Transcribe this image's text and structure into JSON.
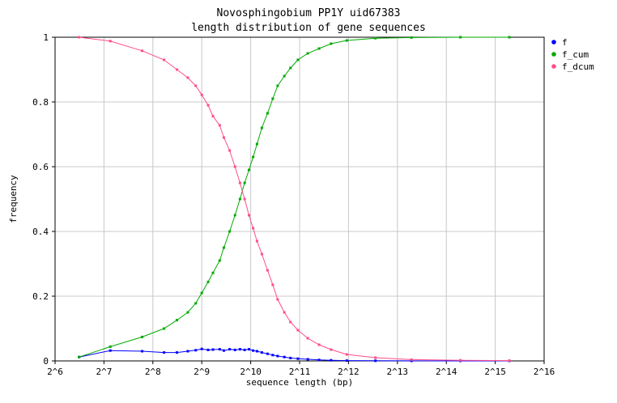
{
  "chart_data": {
    "type": "line",
    "title": "Novosphingobium PP1Y uid67383",
    "subtitle": "length distribution of gene sequences",
    "xlabel": "sequence length (bp)",
    "ylabel": "frequency",
    "xscale": "log2",
    "xlim": [
      64,
      65536
    ],
    "ylim": [
      0,
      1
    ],
    "x_ticks": [
      "2^6",
      "2^7",
      "2^8",
      "2^9",
      "2^10",
      "2^11",
      "2^12",
      "2^13",
      "2^14",
      "2^15",
      "2^16"
    ],
    "y_ticks": [
      "0",
      "0.2",
      "0.4",
      "0.6",
      "0.8",
      "1"
    ],
    "grid": true,
    "legend_position": "right",
    "series": [
      {
        "name": "f",
        "color": "#0000ff",
        "points": [
          [
            90,
            0.012
          ],
          [
            140,
            0.032
          ],
          [
            220,
            0.03
          ],
          [
            300,
            0.026
          ],
          [
            360,
            0.026
          ],
          [
            420,
            0.03
          ],
          [
            470,
            0.033
          ],
          [
            512,
            0.037
          ],
          [
            560,
            0.034
          ],
          [
            600,
            0.035
          ],
          [
            660,
            0.036
          ],
          [
            700,
            0.032
          ],
          [
            760,
            0.036
          ],
          [
            820,
            0.034
          ],
          [
            880,
            0.036
          ],
          [
            940,
            0.034
          ],
          [
            1000,
            0.036
          ],
          [
            1060,
            0.032
          ],
          [
            1120,
            0.03
          ],
          [
            1200,
            0.026
          ],
          [
            1300,
            0.022
          ],
          [
            1400,
            0.018
          ],
          [
            1500,
            0.015
          ],
          [
            1650,
            0.012
          ],
          [
            1800,
            0.009
          ],
          [
            2000,
            0.007
          ],
          [
            2300,
            0.005
          ],
          [
            2700,
            0.003
          ],
          [
            3200,
            0.002
          ],
          [
            4000,
            0.001
          ],
          [
            6000,
            0.0005
          ],
          [
            10000,
            0.0002
          ],
          [
            20000,
            0.0001
          ],
          [
            40000,
            0
          ]
        ]
      },
      {
        "name": "f_cum",
        "color": "#00aa00",
        "points": [
          [
            90,
            0.012
          ],
          [
            140,
            0.044
          ],
          [
            220,
            0.074
          ],
          [
            300,
            0.1
          ],
          [
            360,
            0.126
          ],
          [
            420,
            0.15
          ],
          [
            470,
            0.178
          ],
          [
            512,
            0.21
          ],
          [
            560,
            0.244
          ],
          [
            600,
            0.272
          ],
          [
            660,
            0.31
          ],
          [
            700,
            0.35
          ],
          [
            760,
            0.4
          ],
          [
            820,
            0.45
          ],
          [
            880,
            0.5
          ],
          [
            940,
            0.55
          ],
          [
            1000,
            0.59
          ],
          [
            1060,
            0.63
          ],
          [
            1120,
            0.67
          ],
          [
            1200,
            0.72
          ],
          [
            1300,
            0.765
          ],
          [
            1400,
            0.81
          ],
          [
            1500,
            0.85
          ],
          [
            1650,
            0.88
          ],
          [
            1800,
            0.905
          ],
          [
            2000,
            0.93
          ],
          [
            2300,
            0.95
          ],
          [
            2700,
            0.965
          ],
          [
            3200,
            0.98
          ],
          [
            4000,
            0.99
          ],
          [
            6000,
            0.997
          ],
          [
            10000,
            0.999
          ],
          [
            20000,
            1.0
          ],
          [
            40000,
            1.0
          ]
        ]
      },
      {
        "name": "f_dcum",
        "color": "#ff4d88",
        "points": [
          [
            90,
            1.0
          ],
          [
            140,
            0.988
          ],
          [
            220,
            0.958
          ],
          [
            300,
            0.93
          ],
          [
            360,
            0.9
          ],
          [
            420,
            0.875
          ],
          [
            470,
            0.85
          ],
          [
            512,
            0.822
          ],
          [
            560,
            0.79
          ],
          [
            600,
            0.756
          ],
          [
            660,
            0.728
          ],
          [
            700,
            0.69
          ],
          [
            760,
            0.65
          ],
          [
            820,
            0.6
          ],
          [
            880,
            0.55
          ],
          [
            940,
            0.5
          ],
          [
            1000,
            0.45
          ],
          [
            1060,
            0.41
          ],
          [
            1120,
            0.37
          ],
          [
            1200,
            0.33
          ],
          [
            1300,
            0.28
          ],
          [
            1400,
            0.235
          ],
          [
            1500,
            0.19
          ],
          [
            1650,
            0.15
          ],
          [
            1800,
            0.12
          ],
          [
            2000,
            0.095
          ],
          [
            2300,
            0.07
          ],
          [
            2700,
            0.05
          ],
          [
            3200,
            0.035
          ],
          [
            4000,
            0.02
          ],
          [
            6000,
            0.01
          ],
          [
            10000,
            0.004
          ],
          [
            20000,
            0.002
          ],
          [
            40000,
            0.001
          ]
        ]
      }
    ]
  }
}
